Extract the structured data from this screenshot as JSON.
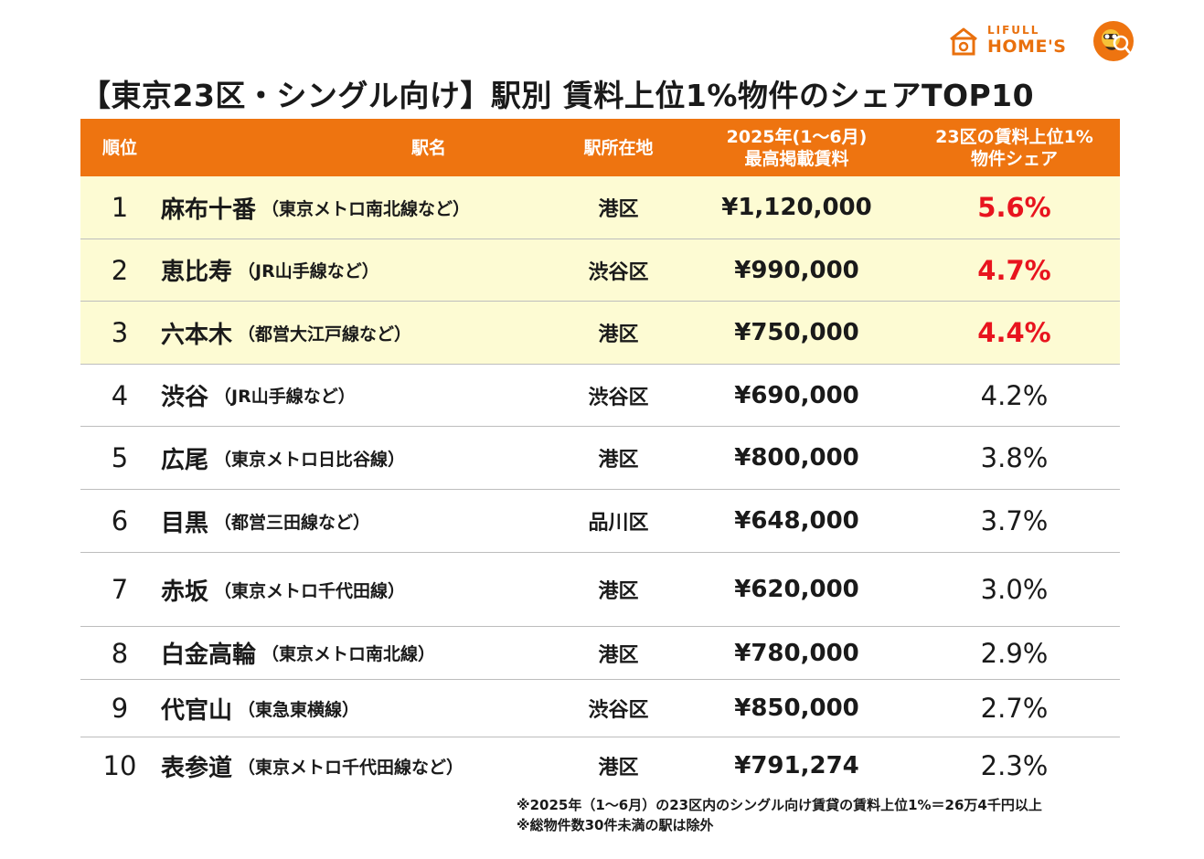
{
  "logo": {
    "line1": "LIFULL",
    "line2": "HOME'S",
    "color": "#e9700d",
    "house_icon": "house-icon",
    "mascot_icon": "mascot-icon"
  },
  "title": "【東京23区・シングル向け】駅別 賃料上位1%物件のシェアTOP10",
  "table": {
    "headers": {
      "rank": "順位",
      "name": "駅名",
      "location": "駅所在地",
      "rent_line1": "2025年(1～6月)",
      "rent_line2": "最高掲載賃料",
      "share_line1": "23区の賃料上位1%",
      "share_line2": "物件シェア"
    },
    "header_color": "#ee7410",
    "highlight_color": "#fdfbd3",
    "share_highlight_color": "#e8141e",
    "rows": [
      {
        "rank": "1",
        "station": "麻布十番",
        "line": "（東京メトロ南北線など）",
        "location": "港区",
        "rent": "¥1,120,000",
        "share": "5.6%"
      },
      {
        "rank": "2",
        "station": "恵比寿",
        "line": "（JR山手線など）",
        "location": "渋谷区",
        "rent": "¥990,000",
        "share": "4.7%"
      },
      {
        "rank": "3",
        "station": "六本木",
        "line": "（都営大江戸線など）",
        "location": "港区",
        "rent": "¥750,000",
        "share": "4.4%"
      },
      {
        "rank": "4",
        "station": "渋谷",
        "line": "（JR山手線など）",
        "location": "渋谷区",
        "rent": "¥690,000",
        "share": "4.2%"
      },
      {
        "rank": "5",
        "station": "広尾",
        "line": "（東京メトロ日比谷線）",
        "location": "港区",
        "rent": "¥800,000",
        "share": "3.8%"
      },
      {
        "rank": "6",
        "station": "目黒",
        "line": "（都営三田線など）",
        "location": "品川区",
        "rent": "¥648,000",
        "share": "3.7%"
      },
      {
        "rank": "7",
        "station": "赤坂",
        "line": "（東京メトロ千代田線）",
        "location": "港区",
        "rent": "¥620,000",
        "share": "3.0%"
      },
      {
        "rank": "8",
        "station": "白金高輪",
        "line": "（東京メトロ南北線）",
        "location": "港区",
        "rent": "¥780,000",
        "share": "2.9%"
      },
      {
        "rank": "9",
        "station": "代官山",
        "line": "（東急東横線）",
        "location": "渋谷区",
        "rent": "¥850,000",
        "share": "2.7%"
      },
      {
        "rank": "10",
        "station": "表参道",
        "line": "（東京メトロ千代田線など）",
        "location": "港区",
        "rent": "¥791,274",
        "share": "2.3%"
      }
    ]
  },
  "notes": [
    "※2025年（1～6月）の23区内のシングル向け賃貸の賃料上位1%＝26万4千円以上",
    "※総物件数30件未満の駅は除外"
  ]
}
